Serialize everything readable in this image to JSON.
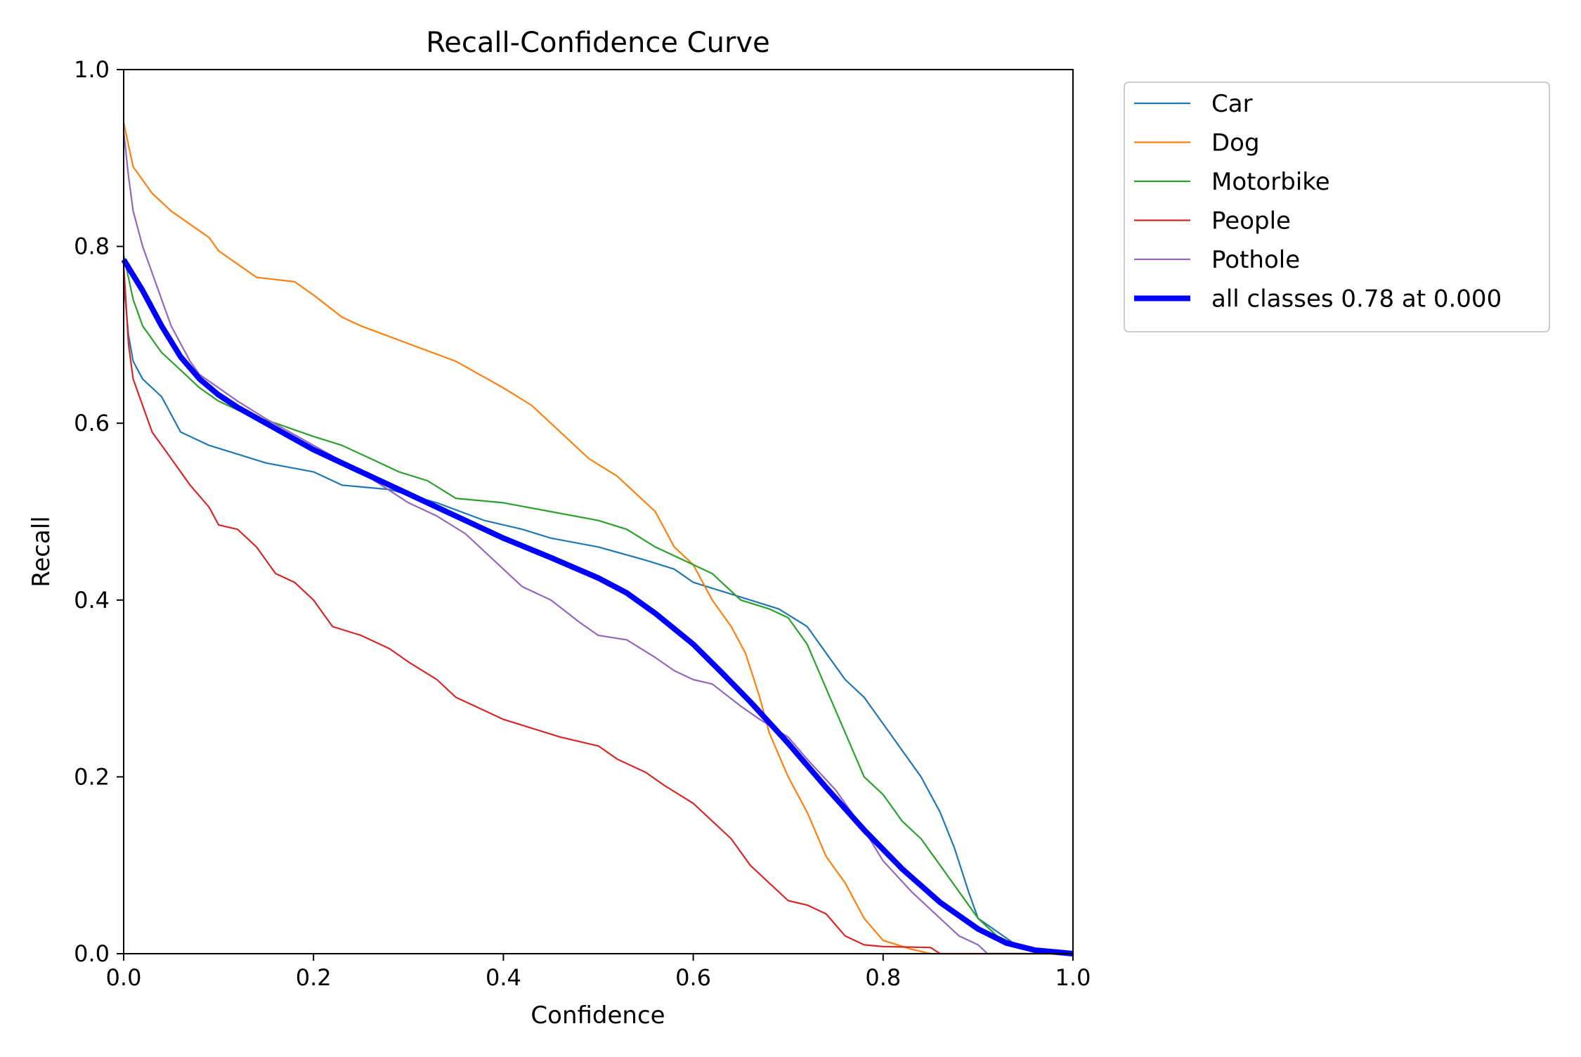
{
  "chart_data": {
    "type": "line",
    "title": "Recall-Confidence Curve",
    "xlabel": "Confidence",
    "ylabel": "Recall",
    "xlim": [
      0.0,
      1.0
    ],
    "ylim": [
      0.0,
      1.0
    ],
    "xticks": [
      0.0,
      0.2,
      0.4,
      0.6,
      0.8,
      1.0
    ],
    "yticks": [
      0.0,
      0.2,
      0.4,
      0.6,
      0.8,
      1.0
    ],
    "xtick_labels": [
      "0.0",
      "0.2",
      "0.4",
      "0.6",
      "0.8",
      "1.0"
    ],
    "ytick_labels": [
      "0.0",
      "0.2",
      "0.4",
      "0.6",
      "0.8",
      "1.0"
    ],
    "grid": false,
    "legend_position": "outside-top-right",
    "series": [
      {
        "name": "Car",
        "color": "#1f77b4",
        "points": [
          [
            0.0,
            0.76
          ],
          [
            0.005,
            0.7
          ],
          [
            0.01,
            0.67
          ],
          [
            0.02,
            0.65
          ],
          [
            0.04,
            0.63
          ],
          [
            0.06,
            0.59
          ],
          [
            0.09,
            0.575
          ],
          [
            0.12,
            0.565
          ],
          [
            0.15,
            0.555
          ],
          [
            0.2,
            0.545
          ],
          [
            0.23,
            0.53
          ],
          [
            0.28,
            0.525
          ],
          [
            0.33,
            0.51
          ],
          [
            0.38,
            0.49
          ],
          [
            0.42,
            0.48
          ],
          [
            0.45,
            0.47
          ],
          [
            0.5,
            0.46
          ],
          [
            0.55,
            0.445
          ],
          [
            0.58,
            0.435
          ],
          [
            0.6,
            0.42
          ],
          [
            0.63,
            0.41
          ],
          [
            0.66,
            0.4
          ],
          [
            0.69,
            0.39
          ],
          [
            0.72,
            0.37
          ],
          [
            0.74,
            0.34
          ],
          [
            0.76,
            0.31
          ],
          [
            0.78,
            0.29
          ],
          [
            0.8,
            0.26
          ],
          [
            0.82,
            0.23
          ],
          [
            0.84,
            0.2
          ],
          [
            0.86,
            0.16
          ],
          [
            0.875,
            0.12
          ],
          [
            0.89,
            0.07
          ],
          [
            0.9,
            0.04
          ],
          [
            0.92,
            0.025
          ],
          [
            0.94,
            0.01
          ],
          [
            0.96,
            0.004
          ],
          [
            1.0,
            0.0
          ]
        ]
      },
      {
        "name": "Dog",
        "color": "#ff7f0e",
        "points": [
          [
            0.0,
            0.94
          ],
          [
            0.01,
            0.89
          ],
          [
            0.03,
            0.86
          ],
          [
            0.05,
            0.84
          ],
          [
            0.07,
            0.825
          ],
          [
            0.09,
            0.81
          ],
          [
            0.1,
            0.795
          ],
          [
            0.12,
            0.78
          ],
          [
            0.14,
            0.765
          ],
          [
            0.18,
            0.76
          ],
          [
            0.2,
            0.745
          ],
          [
            0.23,
            0.72
          ],
          [
            0.25,
            0.71
          ],
          [
            0.3,
            0.69
          ],
          [
            0.35,
            0.67
          ],
          [
            0.4,
            0.64
          ],
          [
            0.43,
            0.62
          ],
          [
            0.46,
            0.59
          ],
          [
            0.49,
            0.56
          ],
          [
            0.52,
            0.54
          ],
          [
            0.54,
            0.52
          ],
          [
            0.56,
            0.5
          ],
          [
            0.58,
            0.46
          ],
          [
            0.6,
            0.44
          ],
          [
            0.62,
            0.4
          ],
          [
            0.64,
            0.37
          ],
          [
            0.655,
            0.34
          ],
          [
            0.67,
            0.29
          ],
          [
            0.68,
            0.25
          ],
          [
            0.7,
            0.2
          ],
          [
            0.72,
            0.16
          ],
          [
            0.74,
            0.11
          ],
          [
            0.76,
            0.08
          ],
          [
            0.78,
            0.04
          ],
          [
            0.8,
            0.015
          ],
          [
            0.83,
            0.005
          ],
          [
            0.85,
            0.0
          ],
          [
            1.0,
            0.0
          ]
        ]
      },
      {
        "name": "Motorbike",
        "color": "#2ca02c",
        "points": [
          [
            0.0,
            0.79
          ],
          [
            0.01,
            0.74
          ],
          [
            0.02,
            0.71
          ],
          [
            0.04,
            0.68
          ],
          [
            0.06,
            0.66
          ],
          [
            0.08,
            0.64
          ],
          [
            0.1,
            0.625
          ],
          [
            0.13,
            0.61
          ],
          [
            0.16,
            0.6
          ],
          [
            0.2,
            0.585
          ],
          [
            0.23,
            0.575
          ],
          [
            0.26,
            0.56
          ],
          [
            0.29,
            0.545
          ],
          [
            0.32,
            0.535
          ],
          [
            0.35,
            0.515
          ],
          [
            0.4,
            0.51
          ],
          [
            0.45,
            0.5
          ],
          [
            0.5,
            0.49
          ],
          [
            0.53,
            0.48
          ],
          [
            0.56,
            0.46
          ],
          [
            0.58,
            0.45
          ],
          [
            0.6,
            0.44
          ],
          [
            0.62,
            0.43
          ],
          [
            0.65,
            0.4
          ],
          [
            0.68,
            0.39
          ],
          [
            0.7,
            0.38
          ],
          [
            0.72,
            0.35
          ],
          [
            0.74,
            0.3
          ],
          [
            0.76,
            0.25
          ],
          [
            0.78,
            0.2
          ],
          [
            0.8,
            0.18
          ],
          [
            0.82,
            0.15
          ],
          [
            0.84,
            0.13
          ],
          [
            0.86,
            0.1
          ],
          [
            0.88,
            0.07
          ],
          [
            0.9,
            0.04
          ],
          [
            0.92,
            0.02
          ],
          [
            0.95,
            0.005
          ],
          [
            1.0,
            0.0
          ]
        ]
      },
      {
        "name": "People",
        "color": "#d62728",
        "points": [
          [
            0.0,
            0.78
          ],
          [
            0.005,
            0.69
          ],
          [
            0.01,
            0.65
          ],
          [
            0.02,
            0.62
          ],
          [
            0.03,
            0.59
          ],
          [
            0.05,
            0.56
          ],
          [
            0.07,
            0.53
          ],
          [
            0.09,
            0.505
          ],
          [
            0.1,
            0.485
          ],
          [
            0.12,
            0.48
          ],
          [
            0.14,
            0.46
          ],
          [
            0.16,
            0.43
          ],
          [
            0.18,
            0.42
          ],
          [
            0.2,
            0.4
          ],
          [
            0.22,
            0.37
          ],
          [
            0.25,
            0.36
          ],
          [
            0.28,
            0.345
          ],
          [
            0.3,
            0.33
          ],
          [
            0.33,
            0.31
          ],
          [
            0.35,
            0.29
          ],
          [
            0.37,
            0.28
          ],
          [
            0.4,
            0.265
          ],
          [
            0.43,
            0.255
          ],
          [
            0.46,
            0.245
          ],
          [
            0.5,
            0.235
          ],
          [
            0.52,
            0.22
          ],
          [
            0.55,
            0.205
          ],
          [
            0.57,
            0.19
          ],
          [
            0.6,
            0.17
          ],
          [
            0.62,
            0.15
          ],
          [
            0.64,
            0.13
          ],
          [
            0.66,
            0.1
          ],
          [
            0.68,
            0.08
          ],
          [
            0.7,
            0.06
          ],
          [
            0.72,
            0.055
          ],
          [
            0.74,
            0.045
          ],
          [
            0.76,
            0.02
          ],
          [
            0.78,
            0.01
          ],
          [
            0.8,
            0.008
          ],
          [
            0.85,
            0.007
          ],
          [
            0.86,
            0.0
          ],
          [
            1.0,
            0.0
          ]
        ]
      },
      {
        "name": "Pothole",
        "color": "#9467bd",
        "points": [
          [
            0.0,
            0.93
          ],
          [
            0.005,
            0.88
          ],
          [
            0.01,
            0.84
          ],
          [
            0.02,
            0.8
          ],
          [
            0.03,
            0.77
          ],
          [
            0.04,
            0.74
          ],
          [
            0.05,
            0.71
          ],
          [
            0.06,
            0.69
          ],
          [
            0.07,
            0.67
          ],
          [
            0.08,
            0.655
          ],
          [
            0.1,
            0.64
          ],
          [
            0.12,
            0.625
          ],
          [
            0.15,
            0.605
          ],
          [
            0.2,
            0.575
          ],
          [
            0.25,
            0.545
          ],
          [
            0.3,
            0.51
          ],
          [
            0.33,
            0.495
          ],
          [
            0.36,
            0.475
          ],
          [
            0.4,
            0.435
          ],
          [
            0.42,
            0.415
          ],
          [
            0.45,
            0.4
          ],
          [
            0.48,
            0.375
          ],
          [
            0.5,
            0.36
          ],
          [
            0.53,
            0.355
          ],
          [
            0.56,
            0.335
          ],
          [
            0.58,
            0.32
          ],
          [
            0.6,
            0.31
          ],
          [
            0.62,
            0.305
          ],
          [
            0.65,
            0.28
          ],
          [
            0.67,
            0.265
          ],
          [
            0.7,
            0.245
          ],
          [
            0.72,
            0.22
          ],
          [
            0.75,
            0.185
          ],
          [
            0.78,
            0.14
          ],
          [
            0.8,
            0.105
          ],
          [
            0.83,
            0.07
          ],
          [
            0.86,
            0.04
          ],
          [
            0.88,
            0.02
          ],
          [
            0.9,
            0.01
          ],
          [
            0.91,
            0.0
          ],
          [
            1.0,
            0.0
          ]
        ]
      },
      {
        "name": "all classes 0.78 at 0.000",
        "color": "#0000ff",
        "thick": true,
        "points": [
          [
            0.0,
            0.785
          ],
          [
            0.02,
            0.75
          ],
          [
            0.04,
            0.71
          ],
          [
            0.06,
            0.675
          ],
          [
            0.08,
            0.65
          ],
          [
            0.1,
            0.632
          ],
          [
            0.12,
            0.618
          ],
          [
            0.15,
            0.6
          ],
          [
            0.2,
            0.57
          ],
          [
            0.25,
            0.545
          ],
          [
            0.3,
            0.52
          ],
          [
            0.35,
            0.495
          ],
          [
            0.4,
            0.47
          ],
          [
            0.45,
            0.448
          ],
          [
            0.5,
            0.425
          ],
          [
            0.53,
            0.408
          ],
          [
            0.56,
            0.385
          ],
          [
            0.6,
            0.35
          ],
          [
            0.63,
            0.318
          ],
          [
            0.66,
            0.285
          ],
          [
            0.7,
            0.238
          ],
          [
            0.74,
            0.188
          ],
          [
            0.78,
            0.14
          ],
          [
            0.82,
            0.096
          ],
          [
            0.86,
            0.058
          ],
          [
            0.9,
            0.028
          ],
          [
            0.93,
            0.012
          ],
          [
            0.96,
            0.004
          ],
          [
            1.0,
            0.0
          ]
        ]
      }
    ]
  }
}
